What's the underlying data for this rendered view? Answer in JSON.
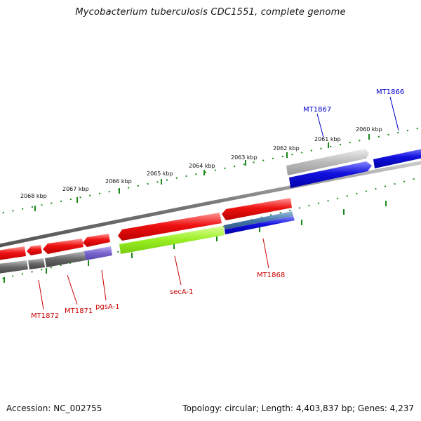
{
  "title": "Mycobacterium tuberculosis CDC1551, complete genome",
  "footer": {
    "accession": "Accession: NC_002755",
    "topology": "Topology: circular; Length: 4,403,837 bp; Genes: 4,237"
  },
  "colors": {
    "red_gene": "#ee1111",
    "blue_gene": "#1111dd",
    "dark_gray": "#666666",
    "light_gray": "#bbbbbb",
    "lime": "#99ee22",
    "steel_blue": "#4477aa",
    "purple": "#7766cc",
    "backbone": "#777777",
    "ticks": "#1a8a1a",
    "label_red": "#cc0000",
    "label_blue": "#0000cc"
  },
  "tick_labels": [
    {
      "text": "2068 kbp"
    },
    {
      "text": "2067 kbp"
    },
    {
      "text": "2066 kbp"
    },
    {
      "text": "2065 kbp"
    },
    {
      "text": "2064 kbp"
    },
    {
      "text": "2063 kbp"
    },
    {
      "text": "2062 kbp"
    },
    {
      "text": "2061 kbp"
    },
    {
      "text": "2060 kbp"
    }
  ],
  "gene_labels": [
    {
      "name": "MT1866",
      "color": "#0000cc"
    },
    {
      "name": "MT1867",
      "color": "#0000cc"
    },
    {
      "name": "MT1868",
      "color": "#cc0000"
    },
    {
      "name": "secA-1",
      "color": "#cc0000"
    },
    {
      "name": "pgsA-1",
      "color": "#cc0000"
    },
    {
      "name": "MT1871",
      "color": "#cc0000"
    },
    {
      "name": "MT1872",
      "color": "#cc0000"
    }
  ]
}
